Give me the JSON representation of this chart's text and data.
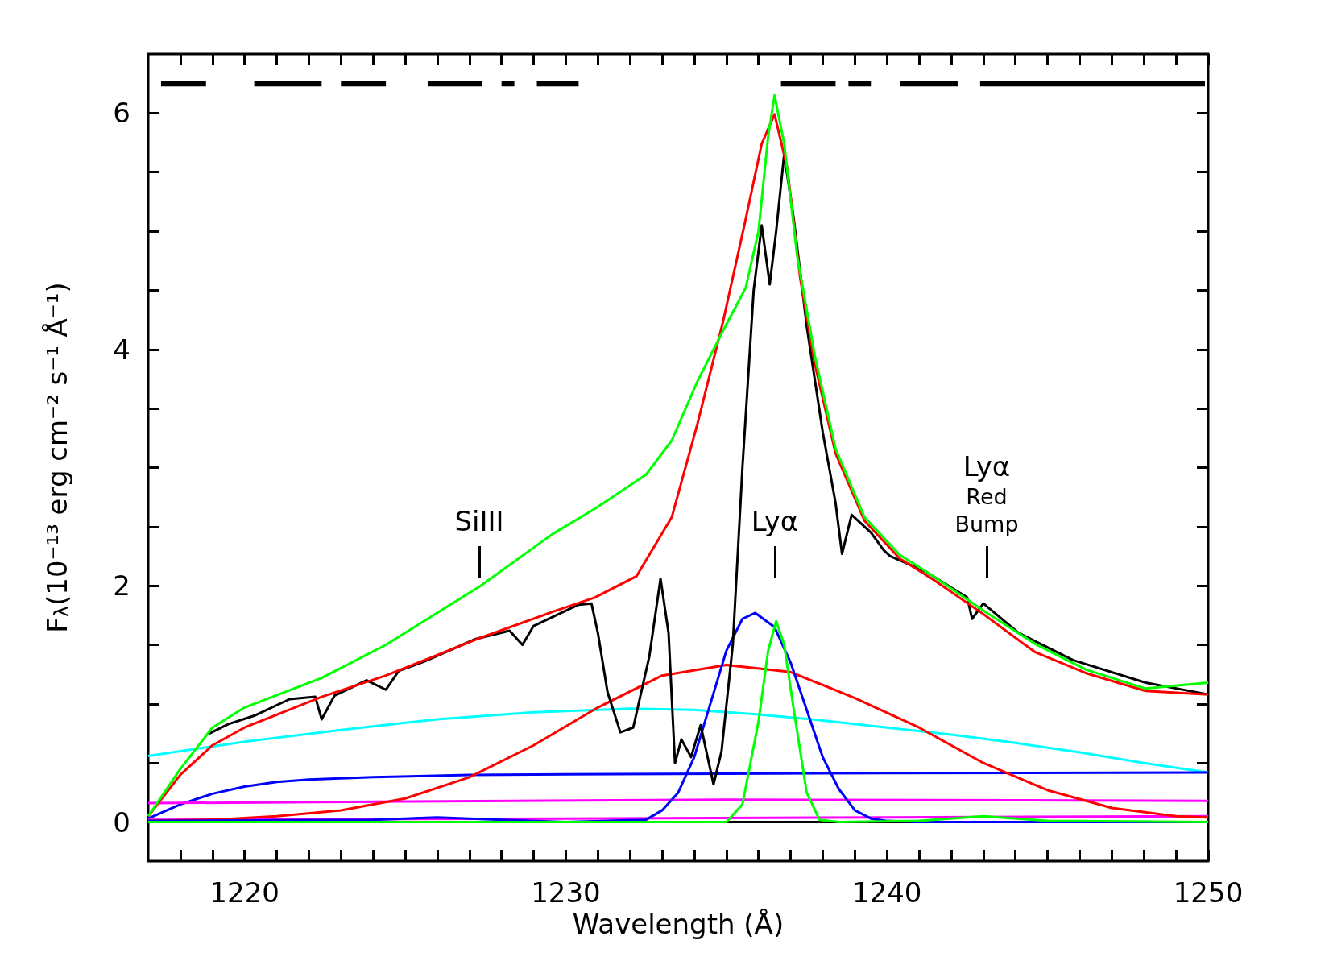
{
  "chart_data": {
    "type": "line",
    "xlabel": "Wavelength (Å)",
    "ylabel": "F$_{λ}$(10⁻¹³ erg cm⁻² s⁻¹ Å⁻¹)",
    "xlim": [
      1217,
      1250
    ],
    "ylim": [
      -0.33,
      6.5
    ],
    "xticks": [
      {
        "value": 1218,
        "label": null
      },
      {
        "value": 1219,
        "label": null
      },
      1220,
      {
        "value": 1221,
        "label": null
      },
      {
        "value": 1222,
        "label": null
      },
      {
        "value": 1223,
        "label": null
      },
      {
        "value": 1224,
        "label": null
      },
      {
        "value": 1225,
        "label": null
      },
      {
        "value": 1226,
        "label": null
      },
      {
        "value": 1227,
        "label": null
      },
      {
        "value": 1228,
        "label": null
      },
      {
        "value": 1229,
        "label": null
      },
      1230,
      {
        "value": 1231,
        "label": null
      },
      {
        "value": 1232,
        "label": null
      },
      {
        "value": 1233,
        "label": null
      },
      {
        "value": 1234,
        "label": null
      },
      {
        "value": 1235,
        "label": null
      },
      {
        "value": 1236,
        "label": null
      },
      {
        "value": 1237,
        "label": null
      },
      {
        "value": 1238,
        "label": null
      },
      {
        "value": 1239,
        "label": null
      },
      1240,
      {
        "value": 1241,
        "label": null
      },
      {
        "value": 1242,
        "label": null
      },
      {
        "value": 1243,
        "label": null
      },
      {
        "value": 1244,
        "label": null
      },
      {
        "value": 1245,
        "label": null
      },
      {
        "value": 1246,
        "label": null
      },
      {
        "value": 1247,
        "label": null
      },
      {
        "value": 1248,
        "label": null
      },
      {
        "value": 1249,
        "label": null
      },
      1250
    ],
    "yticks": [
      0,
      {
        "value": 0.5,
        "label": null
      },
      {
        "value": 1,
        "label": null
      },
      {
        "value": 1.5,
        "label": null
      },
      2,
      {
        "value": 2.5,
        "label": null
      },
      {
        "value": 3,
        "label": null
      },
      {
        "value": 3.5,
        "label": null
      },
      4,
      {
        "value": 4.5,
        "label": null
      },
      {
        "value": 5,
        "label": null
      },
      {
        "value": 5.5,
        "label": null
      },
      6
    ],
    "grid": false,
    "marker": "none",
    "line_style": "solid",
    "ref_lines": [
      {
        "axis": "y",
        "value": 0,
        "color": "#000000"
      }
    ],
    "annotations": [
      "SiIII",
      "Lyα",
      "Lyα\nRed\nBump"
    ],
    "series": [
      {
        "color": "#000000",
        "x": [
          1217.4,
          1218.8
        ],
        "values": [
          6.25,
          6.25
        ]
      },
      {
        "color": "#000000",
        "x": [
          1220.3,
          1222.4
        ],
        "values": [
          6.25,
          6.25
        ]
      },
      {
        "color": "#000000",
        "x": [
          1223.0,
          1224.4
        ],
        "values": [
          6.25,
          6.25
        ]
      },
      {
        "color": "#000000",
        "x": [
          1225.7,
          1227.4
        ],
        "values": [
          6.25,
          6.25
        ]
      },
      {
        "color": "#000000",
        "x": [
          1228.0,
          1228.4
        ],
        "values": [
          6.25,
          6.25
        ]
      },
      {
        "color": "#000000",
        "x": [
          1229.1,
          1230.4
        ],
        "values": [
          6.25,
          6.25
        ]
      },
      {
        "color": "#000000",
        "x": [
          1236.7,
          1238.4
        ],
        "values": [
          6.25,
          6.25
        ]
      },
      {
        "color": "#000000",
        "x": [
          1238.8,
          1239.5
        ],
        "values": [
          6.25,
          6.25
        ]
      },
      {
        "color": "#000000",
        "x": [
          1240.4,
          1242.2
        ],
        "values": [
          6.25,
          6.25
        ]
      },
      {
        "color": "#000000",
        "x": [
          1242.9,
          1249.9
        ],
        "values": [
          6.25,
          6.25
        ]
      },
      {
        "color": "#00ffff",
        "x": [
          1217,
          1220,
          1223,
          1226,
          1229,
          1232,
          1234,
          1236,
          1238,
          1240,
          1242,
          1244,
          1246,
          1248,
          1250
        ],
        "values": [
          0.56,
          0.68,
          0.78,
          0.87,
          0.93,
          0.96,
          0.95,
          0.91,
          0.86,
          0.8,
          0.74,
          0.67,
          0.59,
          0.5,
          0.42
        ]
      },
      {
        "color": "#0000ff",
        "x": [
          1217,
          1218,
          1219,
          1220,
          1221,
          1222,
          1224,
          1227,
          1230,
          1235,
          1240,
          1250
        ],
        "values": [
          0.03,
          0.15,
          0.24,
          0.3,
          0.34,
          0.36,
          0.38,
          0.4,
          0.405,
          0.41,
          0.415,
          0.42
        ]
      },
      {
        "color": "#ff00ff",
        "x": [
          1217,
          1225,
          1235,
          1250
        ],
        "values": [
          0.16,
          0.175,
          0.19,
          0.18
        ]
      },
      {
        "color": "#ff00ff",
        "x": [
          1217,
          1230,
          1240,
          1250
        ],
        "values": [
          0.02,
          0.03,
          0.04,
          0.05
        ]
      },
      {
        "color": "#ff0000",
        "x": [
          1217,
          1219,
          1221,
          1223,
          1225,
          1227,
          1229,
          1231,
          1233,
          1235,
          1237,
          1239,
          1241,
          1243,
          1245,
          1247,
          1249,
          1250
        ],
        "values": [
          0.01,
          0.02,
          0.05,
          0.1,
          0.2,
          0.38,
          0.65,
          0.97,
          1.24,
          1.33,
          1.27,
          1.05,
          0.8,
          0.5,
          0.27,
          0.12,
          0.05,
          0.04
        ]
      },
      {
        "color": "#0000ff",
        "x": [
          1217,
          1224,
          1226,
          1228,
          1230,
          1232.5,
          1233,
          1233.5,
          1234,
          1234.5,
          1235,
          1235.5,
          1235.9,
          1236.5,
          1237,
          1237.5,
          1238,
          1238.5,
          1239,
          1239.5,
          1240,
          1241,
          1250
        ],
        "values": [
          0.01,
          0.02,
          0.04,
          0.02,
          0.0,
          0.02,
          0.1,
          0.25,
          0.55,
          1.0,
          1.45,
          1.72,
          1.77,
          1.65,
          1.35,
          0.95,
          0.55,
          0.28,
          0.1,
          0.03,
          0.01,
          0.0,
          0.0
        ]
      },
      {
        "color": "#00ff00",
        "x": [
          1217,
          1235,
          1235.5,
          1236,
          1236.3,
          1236.55,
          1236.8,
          1237.1,
          1237.5,
          1237.9,
          1238.5,
          1241,
          1243,
          1245,
          1250
        ],
        "values": [
          0.0,
          0.0,
          0.15,
          0.85,
          1.45,
          1.7,
          1.5,
          0.95,
          0.25,
          0.02,
          0.0,
          0.01,
          0.05,
          0.01,
          0.0
        ]
      },
      {
        "color": "#000000",
        "x": [
          1218.9,
          1219.5,
          1220.3,
          1221.4,
          1222.2,
          1222.4,
          1222.8,
          1223.8,
          1224.4,
          1224.8,
          1225.6,
          1227.2,
          1228.25,
          1228.65,
          1229.0,
          1230.4,
          1230.8,
          1231.0,
          1231.3,
          1231.7,
          1232.1,
          1232.6,
          1232.95,
          1233.2,
          1233.4,
          1233.6,
          1233.9,
          1234.2,
          1234.6,
          1234.85,
          1235.2,
          1235.5,
          1235.85,
          1236.1,
          1236.35,
          1236.55,
          1236.8,
          1237.1,
          1237.5,
          1238.0,
          1238.4,
          1238.6,
          1238.9,
          1239.5,
          1239.9,
          1240.1,
          1241.2,
          1242.5,
          1242.65,
          1243.0,
          1244.1,
          1245.8,
          1248.05,
          1250
        ],
        "values": [
          0.75,
          0.83,
          0.9,
          1.04,
          1.06,
          0.87,
          1.07,
          1.2,
          1.12,
          1.28,
          1.36,
          1.55,
          1.62,
          1.5,
          1.66,
          1.84,
          1.85,
          1.6,
          1.1,
          0.76,
          0.8,
          1.4,
          2.06,
          1.6,
          0.5,
          0.7,
          0.55,
          0.82,
          0.32,
          0.6,
          1.5,
          3.0,
          4.5,
          5.05,
          4.55,
          5.0,
          5.65,
          5.1,
          4.2,
          3.3,
          2.7,
          2.27,
          2.6,
          2.45,
          2.3,
          2.25,
          2.12,
          1.9,
          1.72,
          1.85,
          1.6,
          1.37,
          1.18,
          1.08
        ]
      },
      {
        "color": "#ff0000",
        "x": [
          1217,
          1218,
          1219,
          1220,
          1222.4,
          1224.4,
          1227.35,
          1229.6,
          1230.9,
          1232.2,
          1233.3,
          1234.1,
          1234.9,
          1235.6,
          1236.1,
          1236.5,
          1236.9,
          1237.3,
          1237.75,
          1238.4,
          1239.3,
          1240.4,
          1241.45,
          1243.0,
          1244.6,
          1246.2,
          1248.05,
          1250
        ],
        "values": [
          0.05,
          0.4,
          0.65,
          0.8,
          1.06,
          1.24,
          1.56,
          1.78,
          1.9,
          2.08,
          2.58,
          3.37,
          4.24,
          5.1,
          5.74,
          5.99,
          5.53,
          4.6,
          3.88,
          3.12,
          2.55,
          2.23,
          2.05,
          1.76,
          1.44,
          1.26,
          1.11,
          1.08
        ]
      },
      {
        "color": "#00ff00",
        "x": [
          1217,
          1218,
          1219,
          1220,
          1222.4,
          1224.4,
          1227.35,
          1229.6,
          1230.9,
          1232.5,
          1233.3,
          1234.1,
          1234.9,
          1235.6,
          1236.0,
          1236.3,
          1236.5,
          1236.8,
          1237.2,
          1237.75,
          1238.4,
          1239.3,
          1240.4,
          1241.45,
          1243.0,
          1244.6,
          1246.2,
          1248.05,
          1250
        ],
        "values": [
          0.05,
          0.45,
          0.8,
          0.97,
          1.22,
          1.5,
          2.0,
          2.44,
          2.65,
          2.94,
          3.23,
          3.73,
          4.16,
          4.52,
          5.0,
          5.8,
          6.15,
          5.74,
          4.8,
          3.95,
          3.16,
          2.58,
          2.26,
          2.08,
          1.79,
          1.51,
          1.29,
          1.13,
          1.18
        ]
      }
    ]
  }
}
